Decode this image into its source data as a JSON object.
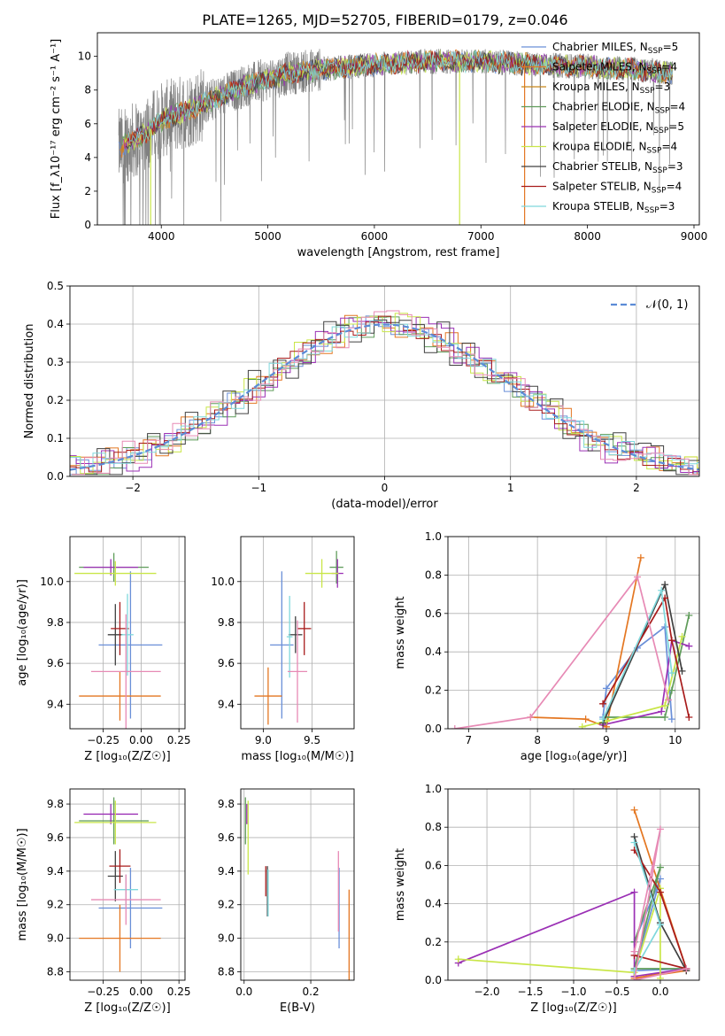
{
  "figure_title": "PLATE=1265, MJD=52705, FIBERID=0179, z=0.046",
  "colors": [
    "#6a8fd8",
    "#e47722",
    "#5f9c5a",
    "#9b30b5",
    "#c9e648",
    "#404040",
    "#a81c1c",
    "#7fd8dc",
    "#e78ab5"
  ],
  "chart_data": [
    {
      "id": "spectrum",
      "type": "line",
      "xlabel": "wavelength [Angstrom, rest frame]",
      "ylabel": "Flux [f_λ10⁻¹⁷ erg cm⁻² s⁻¹ A⁻¹]",
      "xlim": [
        3400,
        9050
      ],
      "ylim": [
        0,
        11.4
      ],
      "xticks": [
        4000,
        5000,
        6000,
        7000,
        8000,
        9000
      ],
      "yticks": [
        0,
        2,
        4,
        6,
        8,
        10
      ],
      "data_color": "#808080",
      "data_range": [
        3600,
        8800
      ],
      "continuum_anchors": {
        "x": [
          3600,
          3800,
          4000,
          4400,
          4800,
          5200,
          5600,
          6000,
          6500,
          7000,
          7500,
          8000,
          8500,
          8800
        ],
        "y": [
          4.6,
          5.2,
          6.2,
          7.2,
          8.3,
          9.0,
          9.3,
          9.5,
          9.7,
          9.7,
          9.5,
          9.4,
          9.2,
          9.0
        ]
      },
      "legend_placement": "upper-right",
      "legend": [
        {
          "label": "Chabrier MILES, N",
          "sub": "SSP",
          "value": "=5",
          "color": "#6a8fd8"
        },
        {
          "label": "Salpeter MILES, N",
          "sub": "SSP",
          "value": "=4",
          "color": "#e47722"
        },
        {
          "label": "Kroupa MILES, N",
          "sub": "SSP",
          "value": "=3",
          "color": "#c8861a"
        },
        {
          "label": "Chabrier ELODIE, N",
          "sub": "SSP",
          "value": "=4",
          "color": "#5f9c5a"
        },
        {
          "label": "Salpeter ELODIE, N",
          "sub": "SSP",
          "value": "=5",
          "color": "#9b30b5"
        },
        {
          "label": "Kroupa ELODIE, N",
          "sub": "SSP",
          "value": "=4",
          "color": "#c9e648"
        },
        {
          "label": "Chabrier STELIB, N",
          "sub": "SSP",
          "value": "=3",
          "color": "#404040"
        },
        {
          "label": "Salpeter STELIB, N",
          "sub": "SSP",
          "value": "=4",
          "color": "#a81c1c"
        },
        {
          "label": "Kroupa STELIB, N",
          "sub": "SSP",
          "value": "=3",
          "color": "#7fd8dc"
        }
      ],
      "model_drops": [
        {
          "x": 3900,
          "color": "#c9e648"
        },
        {
          "x": 6800,
          "color": "#c9e648"
        },
        {
          "x": 7410,
          "color": "#e47722"
        }
      ]
    },
    {
      "id": "residuals",
      "type": "histogram",
      "xlabel": "(data-model)/error",
      "ylabel": "Normed distribution",
      "xlim": [
        -2.5,
        2.5
      ],
      "ylim": [
        0,
        0.5
      ],
      "xticks": [
        -2,
        -1,
        0,
        1,
        2
      ],
      "yticks": [
        0.0,
        0.1,
        0.2,
        0.3,
        0.4,
        0.5
      ],
      "grid": true,
      "bin_width": 0.1,
      "series_noise": [
        0.012,
        0.018,
        0.015,
        0.02,
        0.016,
        0.022,
        0.01,
        0.014,
        0.02
      ],
      "legend": [
        {
          "label": "𝒩(0, 1)",
          "color": "#5b8bd6",
          "style": "dashed"
        }
      ]
    },
    {
      "id": "age_vs_Z",
      "type": "errorbar",
      "xlabel": "Z [log₁₀(Z/Z☉)]",
      "ylabel": "age  [log₁₀(age/yr)]",
      "xlim": [
        -0.47,
        0.29
      ],
      "ylim": [
        9.28,
        10.22
      ],
      "xticks": [
        -0.25,
        0.0,
        0.25
      ],
      "yticks": [
        9.4,
        9.6,
        9.8,
        10.0
      ],
      "grid": true,
      "points": [
        {
          "x": -0.07,
          "y": 9.69,
          "xerr": 0.21,
          "yerr": 0.36,
          "color": "#6a8fd8"
        },
        {
          "x": -0.14,
          "y": 9.44,
          "xerr": 0.27,
          "yerr": 0.12,
          "color": "#e47722"
        },
        {
          "x": -0.18,
          "y": 10.07,
          "xerr": 0.23,
          "yerr": 0.07,
          "color": "#5f9c5a"
        },
        {
          "x": -0.2,
          "y": 10.07,
          "xerr": 0.18,
          "yerr": 0.04,
          "color": "#9b30b5"
        },
        {
          "x": -0.17,
          "y": 10.04,
          "xerr": 0.27,
          "yerr": 0.06,
          "color": "#c9e648"
        },
        {
          "x": -0.17,
          "y": 9.74,
          "xerr": 0.05,
          "yerr": 0.15,
          "color": "#404040"
        },
        {
          "x": -0.14,
          "y": 9.77,
          "xerr": 0.06,
          "yerr": 0.13,
          "color": "#a81c1c"
        },
        {
          "x": -0.09,
          "y": 9.74,
          "xerr": 0.04,
          "yerr": 0.2,
          "color": "#7fd8dc"
        },
        {
          "x": -0.1,
          "y": 9.56,
          "xerr": 0.23,
          "yerr": 0.28,
          "color": "#e78ab5"
        }
      ]
    },
    {
      "id": "age_vs_mass",
      "type": "errorbar",
      "xlabel": "mass [log₁₀(M/M☉)]",
      "ylabel": "",
      "xlim": [
        8.77,
        9.93
      ],
      "ylim": [
        9.28,
        10.22
      ],
      "xticks": [
        9.0,
        9.5
      ],
      "yticks": [
        9.4,
        9.6,
        9.8,
        10.0
      ],
      "grid": true,
      "points": [
        {
          "x": 9.19,
          "y": 9.69,
          "xerr": 0.12,
          "yerr": 0.36,
          "color": "#6a8fd8"
        },
        {
          "x": 9.05,
          "y": 9.44,
          "xerr": 0.14,
          "yerr": 0.14,
          "color": "#e47722"
        },
        {
          "x": 9.75,
          "y": 10.07,
          "xerr": 0.07,
          "yerr": 0.08,
          "color": "#5f9c5a"
        },
        {
          "x": 9.76,
          "y": 10.04,
          "xerr": 0.06,
          "yerr": 0.07,
          "color": "#9b30b5"
        },
        {
          "x": 9.6,
          "y": 10.04,
          "xerr": 0.17,
          "yerr": 0.07,
          "color": "#c9e648"
        },
        {
          "x": 9.33,
          "y": 9.74,
          "xerr": 0.07,
          "yerr": 0.09,
          "color": "#404040"
        },
        {
          "x": 9.42,
          "y": 9.77,
          "xerr": 0.07,
          "yerr": 0.13,
          "color": "#a81c1c"
        },
        {
          "x": 9.27,
          "y": 9.73,
          "xerr": 0.03,
          "yerr": 0.2,
          "color": "#7fd8dc"
        },
        {
          "x": 9.35,
          "y": 9.56,
          "xerr": 0.1,
          "yerr": 0.25,
          "color": "#e78ab5"
        }
      ]
    },
    {
      "id": "weight_vs_age",
      "type": "line",
      "xlabel": "age  [log₁₀(age/yr)]",
      "ylabel": "mass weight",
      "xlim": [
        6.7,
        10.35
      ],
      "ylim": [
        0.0,
        1.0
      ],
      "xticks": [
        7,
        8,
        9,
        10
      ],
      "yticks": [
        0.0,
        0.2,
        0.4,
        0.6,
        0.8,
        1.0
      ],
      "grid": true,
      "series": [
        {
          "color": "#6a8fd8",
          "x": [
            8.95,
            9.0,
            9.45,
            9.85,
            9.95
          ],
          "y": [
            0.06,
            0.21,
            0.42,
            0.53,
            0.05
          ]
        },
        {
          "color": "#e47722",
          "x": [
            7.9,
            8.7,
            9.0,
            9.5
          ],
          "y": [
            0.06,
            0.05,
            0.01,
            0.89
          ]
        },
        {
          "color": "#5f9c5a",
          "x": [
            9.0,
            9.85,
            9.95,
            10.2
          ],
          "y": [
            0.06,
            0.06,
            0.2,
            0.59
          ]
        },
        {
          "color": "#9b30b5",
          "x": [
            8.95,
            9.8,
            9.95,
            10.2
          ],
          "y": [
            0.02,
            0.09,
            0.46,
            0.43
          ]
        },
        {
          "color": "#c9e648",
          "x": [
            8.65,
            9.0,
            9.85,
            10.1
          ],
          "y": [
            0.01,
            0.04,
            0.12,
            0.48
          ]
        },
        {
          "color": "#404040",
          "x": [
            8.95,
            9.85,
            10.1
          ],
          "y": [
            0.03,
            0.75,
            0.3
          ]
        },
        {
          "color": "#a81c1c",
          "x": [
            8.95,
            9.85,
            9.95,
            10.2
          ],
          "y": [
            0.13,
            0.68,
            0.46,
            0.06
          ]
        },
        {
          "color": "#7fd8dc",
          "x": [
            8.95,
            9.8,
            9.95
          ],
          "y": [
            0.05,
            0.72,
            0.29
          ]
        },
        {
          "color": "#e78ab5",
          "x": [
            6.8,
            7.9,
            9.45,
            9.9
          ],
          "y": [
            0.0,
            0.06,
            0.79,
            0.15
          ]
        }
      ]
    },
    {
      "id": "mass_vs_Z",
      "type": "errorbar",
      "xlabel": "Z [log₁₀(Z/Z☉)]",
      "ylabel": "mass [log₁₀(M/M☉)]",
      "xlim": [
        -0.47,
        0.29
      ],
      "ylim": [
        8.75,
        9.89
      ],
      "xticks": [
        -0.25,
        0.0,
        0.25
      ],
      "yticks": [
        8.8,
        9.0,
        9.2,
        9.4,
        9.6,
        9.8
      ],
      "grid": true,
      "points": [
        {
          "x": -0.07,
          "y": 9.18,
          "xerr": 0.21,
          "yerr": 0.24,
          "color": "#6a8fd8"
        },
        {
          "x": -0.14,
          "y": 9.0,
          "xerr": 0.27,
          "yerr": 0.2,
          "color": "#e47722"
        },
        {
          "x": -0.18,
          "y": 9.7,
          "xerr": 0.23,
          "yerr": 0.14,
          "color": "#5f9c5a"
        },
        {
          "x": -0.2,
          "y": 9.74,
          "xerr": 0.18,
          "yerr": 0.06,
          "color": "#9b30b5"
        },
        {
          "x": -0.17,
          "y": 9.69,
          "xerr": 0.27,
          "yerr": 0.13,
          "color": "#c9e648"
        },
        {
          "x": -0.17,
          "y": 9.37,
          "xerr": 0.05,
          "yerr": 0.15,
          "color": "#404040"
        },
        {
          "x": -0.14,
          "y": 9.43,
          "xerr": 0.07,
          "yerr": 0.1,
          "color": "#a81c1c"
        },
        {
          "x": -0.1,
          "y": 9.29,
          "xerr": 0.08,
          "yerr": 0.09,
          "color": "#7fd8dc"
        },
        {
          "x": -0.1,
          "y": 9.23,
          "xerr": 0.23,
          "yerr": 0.15,
          "color": "#e78ab5"
        }
      ]
    },
    {
      "id": "mass_vs_EBV",
      "type": "errorbar",
      "xlabel": "E(B-V)",
      "ylabel": "",
      "xlim": [
        -0.01,
        0.33
      ],
      "ylim": [
        8.75,
        9.89
      ],
      "xticks": [
        0.0,
        0.2
      ],
      "yticks": [
        8.8,
        9.0,
        9.2,
        9.4,
        9.6,
        9.8
      ],
      "grid": true,
      "points": [
        {
          "x": 0.285,
          "y": 9.18,
          "xerr": 0,
          "yerr": 0.24,
          "color": "#6a8fd8"
        },
        {
          "x": 0.315,
          "y": 9.0,
          "xerr": 0,
          "yerr": 0.29,
          "color": "#e47722"
        },
        {
          "x": 0.004,
          "y": 9.7,
          "xerr": 0,
          "yerr": 0.14,
          "color": "#5f9c5a"
        },
        {
          "x": 0.008,
          "y": 9.74,
          "xerr": 0,
          "yerr": 0.06,
          "color": "#9b30b5"
        },
        {
          "x": 0.012,
          "y": 9.6,
          "xerr": 0,
          "yerr": 0.22,
          "color": "#c9e648"
        },
        {
          "x": 0.07,
          "y": 9.28,
          "xerr": 0,
          "yerr": 0.15,
          "color": "#404040"
        },
        {
          "x": 0.065,
          "y": 9.34,
          "xerr": 0,
          "yerr": 0.09,
          "color": "#a81c1c"
        },
        {
          "x": 0.072,
          "y": 9.27,
          "xerr": 0,
          "yerr": 0.14,
          "color": "#7fd8dc"
        },
        {
          "x": 0.283,
          "y": 9.28,
          "xerr": 0,
          "yerr": 0.24,
          "color": "#e78ab5"
        }
      ]
    },
    {
      "id": "weight_vs_Z",
      "type": "line",
      "xlabel": "Z [log₁₀(Z/Z☉)]",
      "ylabel": "mass weight",
      "xlim": [
        -2.45,
        0.45
      ],
      "ylim": [
        0.0,
        1.0
      ],
      "xticks": [
        -2.0,
        -1.5,
        -1.0,
        -0.5,
        0.0
      ],
      "yticks": [
        0.0,
        0.2,
        0.4,
        0.6,
        0.8,
        1.0
      ],
      "grid": true,
      "series": [
        {
          "color": "#6a8fd8",
          "x": [
            -0.3,
            0.0,
            -0.3,
            0.3
          ],
          "y": [
            0.2,
            0.53,
            0.05,
            0.06
          ]
        },
        {
          "color": "#e47722",
          "x": [
            -0.3,
            0.3,
            -0.3,
            0.3
          ],
          "y": [
            0.89,
            0.06,
            0.01,
            0.05
          ]
        },
        {
          "color": "#5f9c5a",
          "x": [
            -0.3,
            0.0,
            -0.3,
            0.3
          ],
          "y": [
            0.2,
            0.59,
            0.06,
            0.06
          ]
        },
        {
          "color": "#9b30b5",
          "x": [
            -2.33,
            -0.3,
            -0.3,
            0.3
          ],
          "y": [
            0.09,
            0.46,
            0.02,
            0.06
          ]
        },
        {
          "color": "#c9e648",
          "x": [
            -2.33,
            -0.3,
            0.0,
            0.0
          ],
          "y": [
            0.11,
            0.04,
            0.48,
            0.01
          ]
        },
        {
          "color": "#404040",
          "x": [
            -0.3,
            0.0,
            0.3
          ],
          "y": [
            0.75,
            0.3,
            0.05
          ]
        },
        {
          "color": "#a81c1c",
          "x": [
            -0.3,
            0.0,
            0.3,
            -0.3
          ],
          "y": [
            0.68,
            0.46,
            0.06,
            0.13
          ]
        },
        {
          "color": "#7fd8dc",
          "x": [
            -0.3,
            0.0,
            -0.3
          ],
          "y": [
            0.72,
            0.29,
            0.05
          ]
        },
        {
          "color": "#e78ab5",
          "x": [
            -0.3,
            0.0,
            -0.3,
            0.3
          ],
          "y": [
            0.15,
            0.79,
            0.0,
            0.06
          ]
        }
      ]
    }
  ]
}
